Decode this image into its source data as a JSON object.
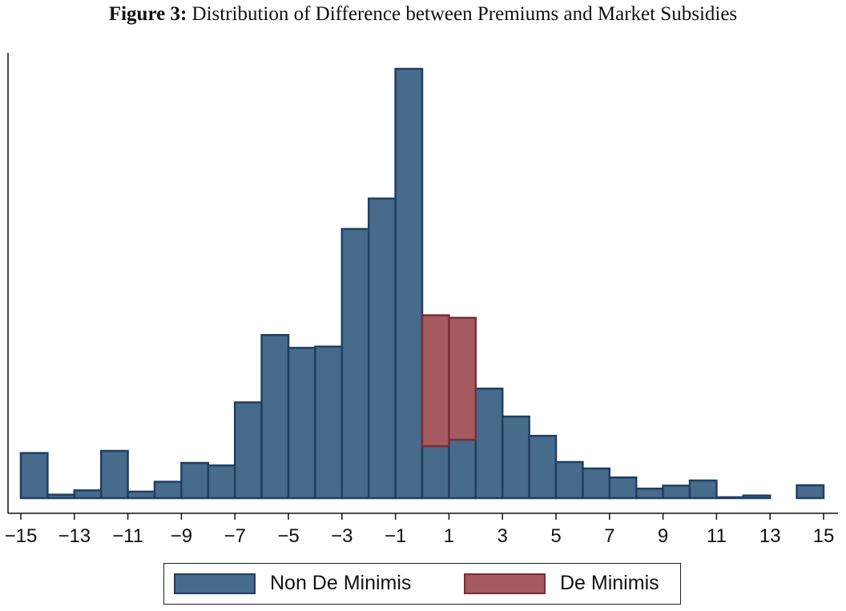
{
  "title": {
    "bold": "Figure 3:",
    "rest": " Distribution of Difference between Premiums and Market Subsidies"
  },
  "colors": {
    "non_de_minimis_fill": "#476b8a",
    "non_de_minimis_stroke": "#1f3f63",
    "de_minimis_fill": "#a45a5f",
    "de_minimis_stroke": "#7a2e37",
    "axis": "#111111"
  },
  "chart_data": {
    "type": "bar",
    "xlim": [
      -15,
      15
    ],
    "ylim": [
      0,
      100
    ],
    "xticks": [
      "−15",
      "−13",
      "−11",
      "−9",
      "−7",
      "−5",
      "−3",
      "−1",
      "1",
      "3",
      "5",
      "7",
      "9",
      "11",
      "13",
      "15"
    ],
    "xtick_values": [
      -15,
      -13,
      -11,
      -9,
      -7,
      -5,
      -3,
      -1,
      1,
      3,
      5,
      7,
      9,
      11,
      13,
      15
    ],
    "ylabel": "",
    "xlabel": "",
    "bin_width": 1,
    "series": [
      {
        "name": "Non De Minimis",
        "bins": [
          {
            "x0": -15,
            "value": 10.5
          },
          {
            "x0": -14,
            "value": 0.8
          },
          {
            "x0": -13,
            "value": 1.8
          },
          {
            "x0": -12,
            "value": 11.0
          },
          {
            "x0": -11,
            "value": 1.5
          },
          {
            "x0": -10,
            "value": 3.8
          },
          {
            "x0": -9,
            "value": 8.2
          },
          {
            "x0": -8,
            "value": 7.6
          },
          {
            "x0": -7,
            "value": 22.3
          },
          {
            "x0": -6,
            "value": 38.0
          },
          {
            "x0": -5,
            "value": 35.0
          },
          {
            "x0": -4,
            "value": 35.3
          },
          {
            "x0": -3,
            "value": 62.7
          },
          {
            "x0": -2,
            "value": 69.8
          },
          {
            "x0": -1,
            "value": 100.0
          },
          {
            "x0": 0,
            "value": 12.1
          },
          {
            "x0": 1,
            "value": 13.6
          },
          {
            "x0": 2,
            "value": 25.5
          },
          {
            "x0": 3,
            "value": 19.0
          },
          {
            "x0": 4,
            "value": 14.5
          },
          {
            "x0": 5,
            "value": 8.4
          },
          {
            "x0": 6,
            "value": 6.9
          },
          {
            "x0": 7,
            "value": 4.8
          },
          {
            "x0": 8,
            "value": 2.2
          },
          {
            "x0": 9,
            "value": 2.9
          },
          {
            "x0": 10,
            "value": 4.1
          },
          {
            "x0": 11,
            "value": 0.2
          },
          {
            "x0": 12,
            "value": 0.6
          },
          {
            "x0": 13,
            "value": 0
          },
          {
            "x0": 14,
            "value": 3.0
          }
        ]
      },
      {
        "name": "De Minimis",
        "bins": [
          {
            "x0": 0,
            "base": 12.1,
            "value": 30.5
          },
          {
            "x0": 1,
            "base": 13.6,
            "value": 28.4
          }
        ]
      }
    ],
    "legend": {
      "position": "bottom",
      "entries": [
        "Non De Minimis",
        "De Minimis"
      ]
    }
  }
}
